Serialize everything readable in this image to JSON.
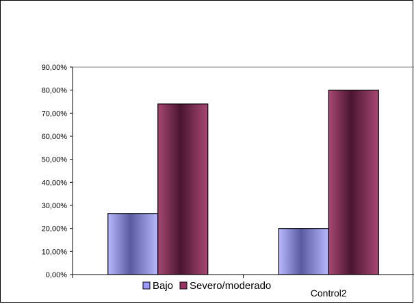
{
  "chart_data": {
    "type": "bar",
    "categories": [
      "",
      "Control2"
    ],
    "series": [
      {
        "name": "Bajo",
        "values": [
          26.5,
          20.0
        ],
        "color": "#9999ff"
      },
      {
        "name": "Severo/moderado",
        "values": [
          74.0,
          80.0
        ],
        "color": "#993366"
      }
    ],
    "ylim": [
      0,
      90
    ],
    "yticks": [
      "0,00%",
      "10,00%",
      "20,00%",
      "30,00%",
      "40,00%",
      "50,00%",
      "60,00%",
      "70,00%",
      "80,00%",
      "90,00%"
    ],
    "grid": false,
    "legend_position": "bottom"
  }
}
